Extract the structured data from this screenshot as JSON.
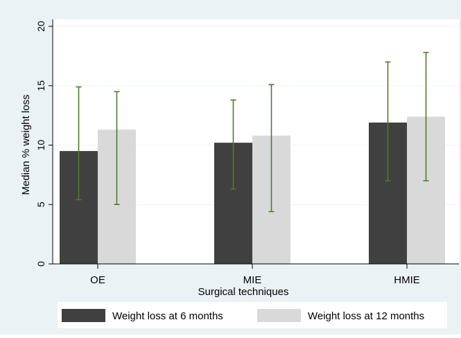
{
  "chart_data": {
    "type": "bar",
    "title": "",
    "xlabel": "Surgical techniques",
    "ylabel": "Median % weight loss",
    "ylim": [
      0,
      20
    ],
    "yticks": [
      0,
      5,
      10,
      15,
      20
    ],
    "categories": [
      "OE",
      "MIE",
      "HMIE"
    ],
    "series": [
      {
        "name": "Weight loss at 6 months",
        "color": "#404040",
        "values": [
          9.5,
          10.2,
          11.9
        ],
        "error_low": [
          5.4,
          6.3,
          7.0
        ],
        "error_high": [
          14.9,
          13.8,
          17.0
        ]
      },
      {
        "name": "Weight loss at 12 months",
        "color": "#d9d9d9",
        "values": [
          11.3,
          10.8,
          12.4
        ],
        "error_low": [
          5.0,
          4.4,
          7.0
        ],
        "error_high": [
          14.5,
          15.1,
          17.8
        ]
      }
    ],
    "error_bar_color": "#4e7a2a",
    "grid": true,
    "legend_position": "bottom",
    "background_color": "#eaf2f3",
    "plot_background_color": "#ffffff"
  }
}
